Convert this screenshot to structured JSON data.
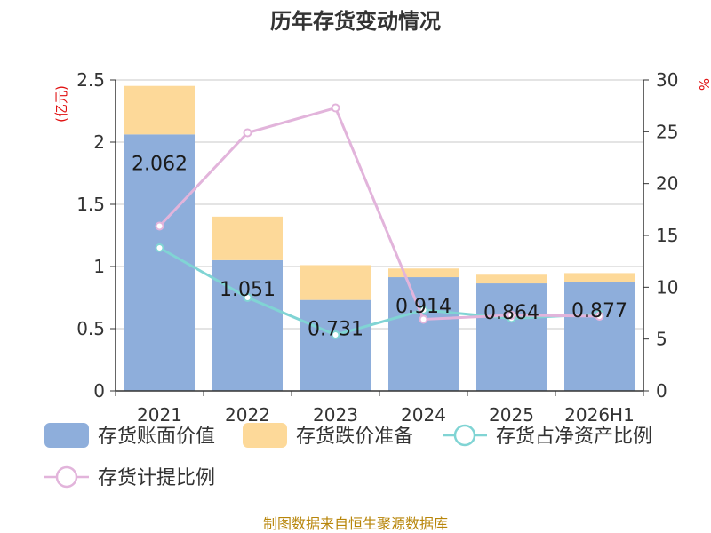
{
  "chart_data": {
    "type": "bar",
    "title": "历年存货变动情况",
    "y_left_unit": "(亿元)",
    "y_right_unit": "%",
    "categories": [
      "2021",
      "2022",
      "2023",
      "2024",
      "2025",
      "2026H1"
    ],
    "y_left_range": [
      0,
      2.5
    ],
    "y_left_ticks": [
      "0",
      "0.5",
      "1",
      "1.5",
      "2",
      "2.5"
    ],
    "y_right_range": [
      0,
      30
    ],
    "y_right_ticks": [
      "0",
      "5",
      "10",
      "15",
      "20",
      "25",
      "30"
    ],
    "stacked": true,
    "grid": true,
    "legend_position": "bottom-left",
    "series": [
      {
        "name": "存货账面价值",
        "kind": "bar",
        "axis": "left",
        "color": "#8eaedb",
        "values": [
          2.062,
          1.051,
          0.731,
          0.914,
          0.864,
          0.877
        ],
        "labels": [
          "2.062",
          "1.051",
          "0.731",
          "0.914",
          "0.864",
          "0.877"
        ]
      },
      {
        "name": "存货跌价准备",
        "kind": "bar",
        "axis": "left",
        "color": "#fdd999",
        "values": [
          0.39,
          0.35,
          0.28,
          0.07,
          0.07,
          0.07
        ]
      },
      {
        "name": "存货占净资产比例",
        "kind": "line",
        "axis": "right",
        "color": "#80d4d4",
        "values": [
          13.8,
          9.0,
          5.4,
          7.8,
          7.0,
          7.4
        ]
      },
      {
        "name": "存货计提比例",
        "kind": "line",
        "axis": "right",
        "color": "#e2b4db",
        "values": [
          15.9,
          24.9,
          27.3,
          6.9,
          7.3,
          7.2
        ]
      }
    ],
    "source": "制图数据来自恒生聚源数据库"
  }
}
